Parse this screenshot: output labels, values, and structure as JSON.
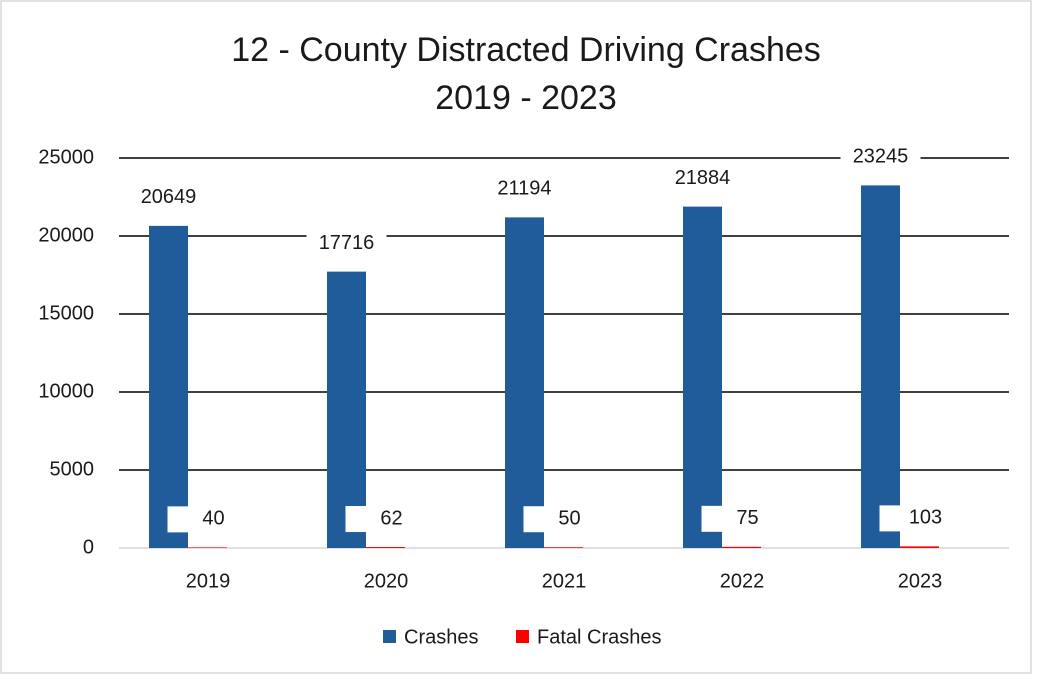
{
  "chart_data": {
    "type": "bar",
    "title": "12 - County Distracted Driving Crashes",
    "subtitle": "2019 - 2023",
    "categories": [
      "2019",
      "2020",
      "2021",
      "2022",
      "2023"
    ],
    "series": [
      {
        "name": "Crashes",
        "color": "#1f5c99",
        "values": [
          20649,
          17716,
          21194,
          21884,
          23245
        ]
      },
      {
        "name": "Fatal Crashes",
        "color": "#ff0000",
        "values": [
          40,
          62,
          50,
          75,
          103
        ]
      }
    ],
    "ylim": [
      0,
      25000
    ],
    "yticks": [
      0,
      5000,
      10000,
      15000,
      20000,
      25000
    ],
    "grid": true,
    "legend": "bottom"
  }
}
